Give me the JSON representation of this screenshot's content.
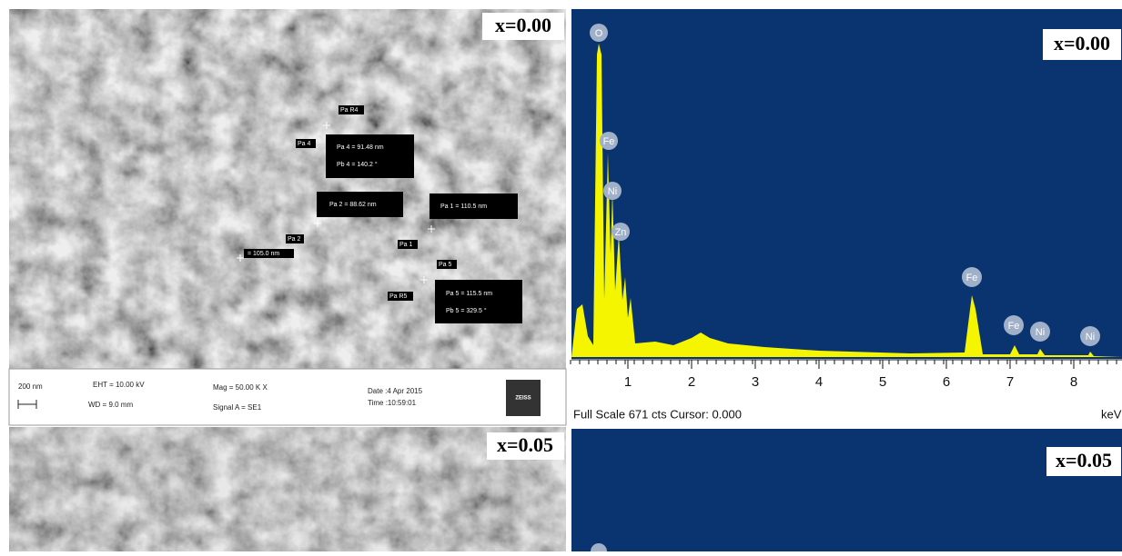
{
  "sem_top": {
    "label": "x=0.00",
    "measurements": [
      "Pa R4",
      "Pa 4",
      "Pa 4 = 91.48 nm",
      "Pb 4 = 140.2 °",
      "Pa 2 = 88.62 nm",
      "Pa 1 = 110.5 nm",
      "Pa 2",
      "= 105.0 nm",
      "Pa 1",
      "Pa 5",
      "Pa R5",
      "Pa 5 = 115.5 nm",
      "Pb 5 = 329.5 °"
    ],
    "info_bar": {
      "scale": "200 nm",
      "eht": "EHT = 10.00 kV",
      "wd": "WD = 9.0 mm",
      "mag": "Mag = 50.00 K X",
      "signal": "Signal A = SE1",
      "date": "Date :4 Apr 2015",
      "time": "Time :10:59:01",
      "logo": "ZEISS"
    }
  },
  "edx_top": {
    "label": "x=0.00",
    "peaks": [
      "O",
      "Fe",
      "Ni",
      "Zn",
      "Fe",
      "Fe",
      "Ni",
      "Ni"
    ],
    "axis_ticks": [
      1,
      2,
      3,
      4,
      5,
      6,
      7,
      8
    ],
    "footer": "Full Scale 671 cts Cursor: 0.000",
    "unit": "keV"
  },
  "sem_bottom": {
    "label": "x=0.05"
  },
  "edx_bottom": {
    "label": "x=0.05"
  }
}
